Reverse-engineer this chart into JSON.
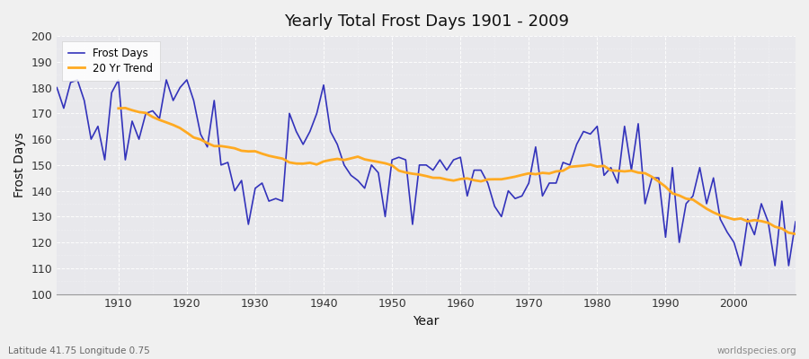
{
  "title": "Yearly Total Frost Days 1901 - 2009",
  "xlabel": "Year",
  "ylabel": "Frost Days",
  "xlim": [
    1901,
    2009
  ],
  "ylim": [
    100,
    200
  ],
  "yticks": [
    100,
    110,
    120,
    130,
    140,
    150,
    160,
    170,
    180,
    190,
    200
  ],
  "xticks": [
    1910,
    1920,
    1930,
    1940,
    1950,
    1960,
    1970,
    1980,
    1990,
    2000
  ],
  "frost_days_color": "#3333bb",
  "trend_color": "#ffaa22",
  "background_color": "#f0f0f0",
  "plot_bg_color": "#e8e8ec",
  "legend_labels": [
    "Frost Days",
    "20 Yr Trend"
  ],
  "watermark": "worldspecies.org",
  "subtitle": "Latitude 41.75 Longitude 0.75",
  "years": [
    1901,
    1902,
    1903,
    1904,
    1905,
    1906,
    1907,
    1908,
    1909,
    1910,
    1911,
    1912,
    1913,
    1914,
    1915,
    1916,
    1917,
    1918,
    1919,
    1920,
    1921,
    1922,
    1923,
    1924,
    1925,
    1926,
    1927,
    1928,
    1929,
    1930,
    1931,
    1932,
    1933,
    1934,
    1935,
    1936,
    1937,
    1938,
    1939,
    1940,
    1941,
    1942,
    1943,
    1944,
    1945,
    1946,
    1947,
    1948,
    1949,
    1950,
    1951,
    1952,
    1953,
    1954,
    1955,
    1956,
    1957,
    1958,
    1959,
    1960,
    1961,
    1962,
    1963,
    1964,
    1965,
    1966,
    1967,
    1968,
    1969,
    1970,
    1971,
    1972,
    1973,
    1974,
    1975,
    1976,
    1977,
    1978,
    1979,
    1980,
    1981,
    1982,
    1983,
    1984,
    1985,
    1986,
    1987,
    1988,
    1989,
    1990,
    1991,
    1992,
    1993,
    1994,
    1995,
    1996,
    1997,
    1998,
    1999,
    2000,
    2001,
    2002,
    2003,
    2004,
    2005,
    2006,
    2007,
    2008,
    2009
  ],
  "frost_values": [
    180,
    172,
    182,
    183,
    175,
    160,
    165,
    152,
    178,
    183,
    152,
    167,
    160,
    170,
    171,
    168,
    183,
    175,
    180,
    183,
    175,
    162,
    157,
    175,
    150,
    151,
    140,
    144,
    127,
    141,
    143,
    136,
    137,
    136,
    170,
    163,
    158,
    163,
    170,
    181,
    163,
    158,
    150,
    146,
    144,
    141,
    150,
    147,
    130,
    152,
    153,
    152,
    127,
    150,
    150,
    148,
    152,
    148,
    152,
    153,
    138,
    148,
    148,
    143,
    134,
    130,
    140,
    137,
    138,
    143,
    157,
    138,
    143,
    143,
    151,
    150,
    158,
    163,
    162,
    165,
    146,
    149,
    143,
    165,
    148,
    166,
    135,
    145,
    145,
    122,
    149,
    120,
    135,
    138,
    149,
    135,
    145,
    129,
    124,
    120,
    111,
    129,
    123,
    135,
    128,
    111,
    136,
    111,
    128
  ],
  "trend_values": [
    null,
    null,
    null,
    null,
    null,
    null,
    null,
    null,
    null,
    173,
    173,
    172,
    171,
    171,
    171,
    170,
    169,
    167,
    165,
    163,
    162,
    161,
    161,
    161,
    160,
    159,
    158,
    157,
    157,
    156,
    155,
    154,
    153,
    152,
    152,
    151,
    151,
    151,
    151,
    150,
    149,
    149,
    149,
    149,
    149,
    149,
    149,
    149,
    148,
    148,
    148,
    147,
    146,
    146,
    145,
    145,
    145,
    145,
    145,
    145,
    144,
    144,
    143,
    143,
    143,
    142,
    142,
    142,
    142,
    142,
    143,
    143,
    143,
    144,
    144,
    145,
    145,
    145,
    145,
    145,
    145,
    145,
    145,
    145,
    144,
    143,
    142,
    141,
    139,
    137,
    135,
    133,
    131,
    130,
    128,
    127,
    126,
    125,
    125,
    125,
    125,
    125,
    125,
    125,
    125,
    125,
    125,
    125,
    125
  ]
}
